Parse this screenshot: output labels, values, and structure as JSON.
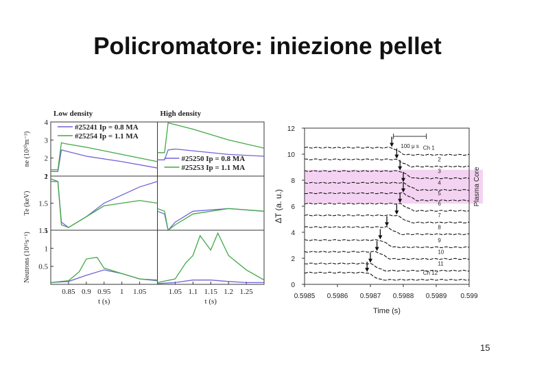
{
  "slide": {
    "title": "Policromatore: iniezione pellet",
    "page_number": "15"
  },
  "chart_data": [
    {
      "type": "line",
      "panel": "left-multipanel",
      "columns": [
        {
          "title": "Low density",
          "xlim": [
            0.8,
            1.1
          ],
          "xticks": [
            0.85,
            0.9,
            0.95,
            1,
            1.05
          ],
          "xlabel": "t (s)"
        },
        {
          "title": "High density",
          "xlim": [
            1.0,
            1.3
          ],
          "xticks": [
            1.05,
            1.1,
            1.15,
            1.2,
            1.25
          ],
          "xlabel": "t (s)"
        }
      ],
      "rows": [
        {
          "ylabel": "ne (10²⁰m⁻³)",
          "ylim": [
            1,
            4
          ],
          "yticks": [
            1,
            2,
            3,
            4
          ]
        },
        {
          "ylabel": "Te (keV)",
          "ylim": [
            1,
            2
          ],
          "yticks": [
            1,
            1.5,
            2
          ]
        },
        {
          "ylabel": "Neutrons (10¹⁵s⁻¹)",
          "ylim": [
            0,
            1.5
          ],
          "yticks": [
            0.5,
            1,
            1.5
          ]
        }
      ],
      "legends": [
        {
          "column": 0,
          "entries": [
            {
              "label": "#25241 Ip = 0.8 MA",
              "color": "#6f63d6"
            },
            {
              "label": "#25254 Ip = 1.1 MA",
              "color": "#3fa845"
            }
          ]
        },
        {
          "column": 1,
          "entries": [
            {
              "label": "#25250 Ip = 0.8 MA",
              "color": "#6f63d6"
            },
            {
              "label": "#25253 Ip = 1.1 MA",
              "color": "#3fa845"
            }
          ]
        }
      ],
      "series": [
        {
          "name": "#25241 Ip = 0.8 MA",
          "column": 0,
          "row": 0,
          "x": [
            0.8,
            0.82,
            0.83,
            0.84,
            0.9,
            1.0,
            1.1
          ],
          "y": [
            1.25,
            1.25,
            2.45,
            2.4,
            2.1,
            1.8,
            1.45
          ]
        },
        {
          "name": "#25254 Ip = 1.1 MA",
          "column": 0,
          "row": 0,
          "x": [
            0.8,
            0.82,
            0.83,
            0.84,
            0.9,
            1.0,
            1.1
          ],
          "y": [
            1.35,
            1.35,
            2.85,
            2.8,
            2.6,
            2.2,
            1.8
          ]
        },
        {
          "name": "#25241 Ip = 0.8 MA",
          "column": 0,
          "row": 1,
          "x": [
            0.8,
            0.82,
            0.83,
            0.85,
            0.9,
            0.95,
            1.0,
            1.05,
            1.1
          ],
          "y": [
            1.9,
            1.9,
            1.15,
            1.05,
            1.25,
            1.5,
            1.65,
            1.8,
            1.9
          ]
        },
        {
          "name": "#25254 Ip = 1.1 MA",
          "column": 0,
          "row": 1,
          "x": [
            0.8,
            0.82,
            0.83,
            0.85,
            0.9,
            0.95,
            1.0,
            1.05,
            1.1
          ],
          "y": [
            1.95,
            1.9,
            1.1,
            1.05,
            1.25,
            1.45,
            1.5,
            1.55,
            1.5
          ]
        },
        {
          "name": "#25241 Ip = 0.8 MA",
          "column": 0,
          "row": 2,
          "x": [
            0.8,
            0.85,
            0.9,
            0.95,
            1.0,
            1.05,
            1.1
          ],
          "y": [
            0.05,
            0.08,
            0.25,
            0.4,
            0.3,
            0.15,
            0.1
          ]
        },
        {
          "name": "#25254 Ip = 1.1 MA",
          "column": 0,
          "row": 2,
          "x": [
            0.8,
            0.85,
            0.88,
            0.9,
            0.93,
            0.95,
            1.0,
            1.05,
            1.1
          ],
          "y": [
            0.05,
            0.1,
            0.35,
            0.7,
            0.75,
            0.45,
            0.3,
            0.15,
            0.12
          ]
        },
        {
          "name": "#25250 Ip = 0.8 MA",
          "column": 1,
          "row": 0,
          "x": [
            1.0,
            1.02,
            1.03,
            1.05,
            1.1,
            1.2,
            1.3
          ],
          "y": [
            1.9,
            1.9,
            2.45,
            2.5,
            2.4,
            2.2,
            2.1
          ]
        },
        {
          "name": "#25253 Ip = 1.1 MA",
          "column": 1,
          "row": 0,
          "x": [
            1.0,
            1.02,
            1.03,
            1.05,
            1.1,
            1.2,
            1.3
          ],
          "y": [
            2.3,
            2.3,
            3.95,
            3.85,
            3.6,
            3.0,
            2.55
          ]
        },
        {
          "name": "#25250 Ip = 0.8 MA",
          "column": 1,
          "row": 1,
          "x": [
            1.0,
            1.02,
            1.03,
            1.05,
            1.1,
            1.2,
            1.3
          ],
          "y": [
            1.35,
            1.3,
            1.0,
            1.15,
            1.35,
            1.4,
            1.35
          ]
        },
        {
          "name": "#25253 Ip = 1.1 MA",
          "column": 1,
          "row": 1,
          "x": [
            1.0,
            1.02,
            1.03,
            1.05,
            1.1,
            1.2,
            1.3
          ],
          "y": [
            1.4,
            1.35,
            1.0,
            1.1,
            1.3,
            1.4,
            1.35
          ]
        },
        {
          "name": "#25250 Ip = 0.8 MA",
          "column": 1,
          "row": 2,
          "x": [
            1.0,
            1.05,
            1.1,
            1.15,
            1.2,
            1.25,
            1.3
          ],
          "y": [
            0.02,
            0.05,
            0.12,
            0.12,
            0.08,
            0.05,
            0.05
          ]
        },
        {
          "name": "#25253 Ip = 1.1 MA",
          "column": 1,
          "row": 2,
          "x": [
            1.0,
            1.05,
            1.08,
            1.1,
            1.12,
            1.15,
            1.17,
            1.2,
            1.25,
            1.3
          ],
          "y": [
            0.05,
            0.15,
            0.6,
            0.8,
            1.35,
            0.95,
            1.42,
            0.8,
            0.4,
            0.12
          ]
        }
      ]
    },
    {
      "type": "line",
      "panel": "right",
      "xlabel": "Time   (s)",
      "ylabel": "ΔT  (a. u.)",
      "xlim": [
        0.5985,
        0.599
      ],
      "ylim": [
        0,
        12
      ],
      "xtick_labels": [
        "0.5985",
        "0.5986",
        "0.5987",
        "0.5988",
        "0.5989",
        "0.599"
      ],
      "ytick_labels": [
        "0",
        "2",
        "4",
        "6",
        "8",
        "10",
        "12"
      ],
      "scale_bar_label": "100  μ s",
      "side_label": "Plasma Core",
      "highlight_band": [
        6.2,
        8.8
      ],
      "highlight_color": "#f4d3f2",
      "channel_labels": [
        "Ch  1",
        "2",
        "3",
        "4",
        "5",
        "6",
        "7",
        "8",
        "9",
        "10",
        "11",
        "Ch  12"
      ],
      "series": [
        {
          "channel": 1,
          "baseline": 10.5,
          "arrow_t": 0.598765
        },
        {
          "channel": 2,
          "baseline": 9.6,
          "arrow_t": 0.59878
        },
        {
          "channel": 3,
          "baseline": 8.7,
          "arrow_t": 0.59879
        },
        {
          "channel": 4,
          "baseline": 7.8,
          "arrow_t": 0.5988
        },
        {
          "channel": 5,
          "baseline": 7.0,
          "arrow_t": 0.5988
        },
        {
          "channel": 6,
          "baseline": 6.2,
          "arrow_t": 0.59879
        },
        {
          "channel": 7,
          "baseline": 5.3,
          "arrow_t": 0.59878
        },
        {
          "channel": 8,
          "baseline": 4.4,
          "arrow_t": 0.59875
        },
        {
          "channel": 9,
          "baseline": 3.4,
          "arrow_t": 0.59873
        },
        {
          "channel": 10,
          "baseline": 2.5,
          "arrow_t": 0.59872
        },
        {
          "channel": 11,
          "baseline": 1.6,
          "arrow_t": 0.5987
        },
        {
          "channel": 12,
          "baseline": 0.9,
          "arrow_t": 0.59869
        }
      ]
    }
  ]
}
